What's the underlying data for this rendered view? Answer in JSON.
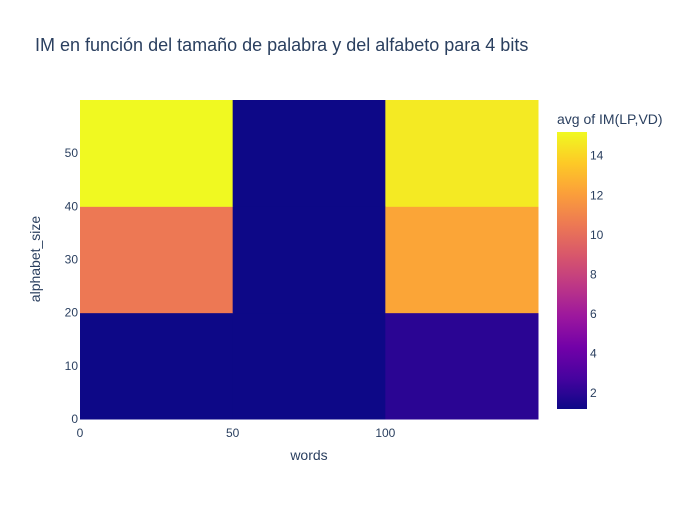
{
  "chart_data": {
    "type": "heatmap",
    "title": "IM en función del tamaño de palabra y del alfabeto para 4 bits",
    "xlabel": "words",
    "ylabel": "alphabet_size",
    "x_bins": [
      [
        0,
        50
      ],
      [
        50,
        100
      ],
      [
        100,
        150
      ]
    ],
    "y_bins": [
      [
        0,
        20
      ],
      [
        20,
        40
      ],
      [
        40,
        60
      ]
    ],
    "z": [
      [
        1.2,
        1.2,
        2.0
      ],
      [
        10.5,
        1.2,
        12.3
      ],
      [
        15.2,
        1.2,
        14.7
      ]
    ],
    "xlim": [
      0,
      150
    ],
    "ylim": [
      0,
      60
    ],
    "x_ticks": [
      "0",
      "50",
      "100"
    ],
    "x_tick_values": [
      0,
      50,
      100
    ],
    "y_ticks": [
      "0",
      "10",
      "20",
      "30",
      "40",
      "50"
    ],
    "y_tick_values": [
      0,
      10,
      20,
      30,
      40,
      50
    ],
    "colorbar": {
      "title": "avg of IM(LP,VD)",
      "range": [
        1.2,
        15.2
      ],
      "ticks": [
        "2",
        "4",
        "6",
        "8",
        "10",
        "12",
        "14"
      ],
      "tick_values": [
        2,
        4,
        6,
        8,
        10,
        12,
        14
      ]
    },
    "colorscale": [
      "#0d0887",
      "#46039f",
      "#7201a8",
      "#9c179e",
      "#bd3786",
      "#d8576b",
      "#ed7953",
      "#fb9f3a",
      "#fdca26",
      "#f0f921"
    ]
  }
}
